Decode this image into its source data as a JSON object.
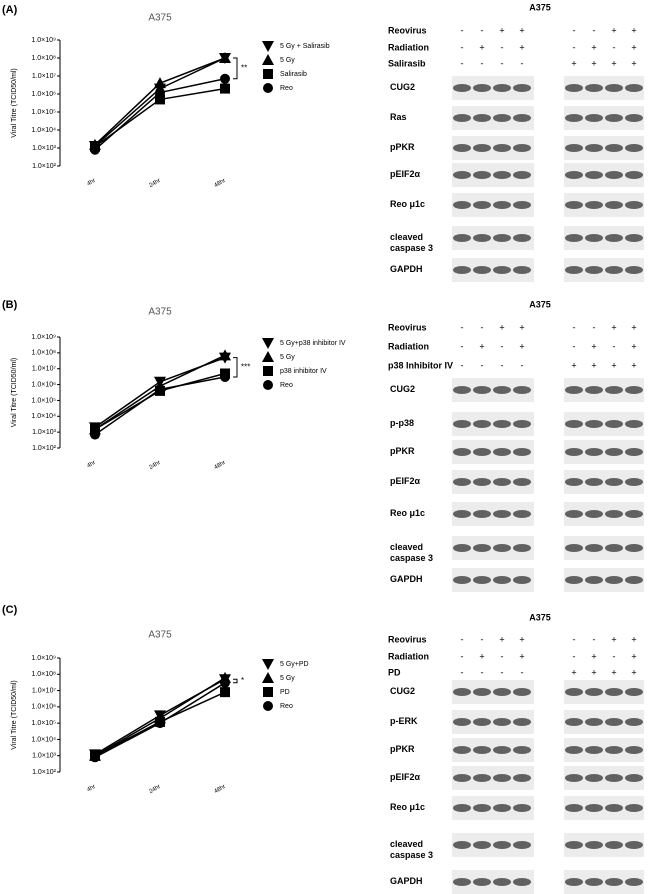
{
  "panel_labels": [
    "(A)",
    "(B)",
    "(C)"
  ],
  "chart_data": [
    {
      "type": "line",
      "title": "A375",
      "y_label": "Viral Titre (TCID50/ml)",
      "log_scale": true,
      "categories": [
        "4hr",
        "24hr",
        "48hr"
      ],
      "ylim": [
        100,
        1000000000
      ],
      "yticks": [
        {
          "value": 1000000000,
          "label": "1.0×10⁹"
        },
        {
          "value": 100000000,
          "label": "1.0×10⁸"
        },
        {
          "value": 10000000,
          "label": "1.0×10⁷"
        },
        {
          "value": 1000000,
          "label": "1.0×10⁶"
        },
        {
          "value": 100000,
          "label": "1.0×10⁵"
        },
        {
          "value": 10000,
          "label": "1.0×10⁴"
        },
        {
          "value": 1000,
          "label": "1.0×10³"
        },
        {
          "value": 100,
          "label": "1.0×10²"
        }
      ],
      "annotation": "**",
      "series": [
        {
          "name": "5 Gy + Salirasib",
          "color": "#000000",
          "marker": "triangle-down",
          "values": [
            1300,
            2000000,
            100000000
          ]
        },
        {
          "name": "5 Gy",
          "color": "#000000",
          "marker": "triangle",
          "values": [
            1500,
            4000000,
            100000000
          ]
        },
        {
          "name": "Salirasib",
          "color": "#000000",
          "marker": "square",
          "values": [
            1200,
            500000,
            2000000
          ]
        },
        {
          "name": "Reo",
          "color": "#000000",
          "marker": "circle",
          "values": [
            800,
            1200000,
            7000000
          ]
        }
      ]
    },
    {
      "type": "line",
      "title": "A375",
      "y_label": "Viral Titre (TCID50/ml)",
      "log_scale": true,
      "categories": [
        "4hr",
        "24hr",
        "48hr"
      ],
      "ylim": [
        100,
        1000000000
      ],
      "yticks": [
        {
          "value": 1000000000,
          "label": "1.0×10⁹"
        },
        {
          "value": 100000000,
          "label": "1.0×10⁸"
        },
        {
          "value": 10000000,
          "label": "1.0×10⁷"
        },
        {
          "value": 1000000,
          "label": "1.0×10⁶"
        },
        {
          "value": 100000,
          "label": "1.0×10⁵"
        },
        {
          "value": 10000,
          "label": "1.0×10⁴"
        },
        {
          "value": 1000,
          "label": "1.0×10³"
        },
        {
          "value": 100,
          "label": "1.0×10²"
        }
      ],
      "annotation": "***",
      "series": [
        {
          "name": "5 Gy+p38 inhibitor IV",
          "color": "#000000",
          "marker": "triangle-down",
          "values": [
            2000,
            1500000,
            50000000
          ]
        },
        {
          "name": "5 Gy",
          "color": "#000000",
          "marker": "triangle",
          "values": [
            1500,
            800000,
            70000000
          ]
        },
        {
          "name": "p38 inhibitor IV",
          "color": "#000000",
          "marker": "square",
          "values": [
            1500,
            400000,
            5000000
          ]
        },
        {
          "name": "Reo",
          "color": "#000000",
          "marker": "circle",
          "values": [
            700,
            500000,
            3000000
          ]
        }
      ]
    },
    {
      "type": "line",
      "title": "A375",
      "y_label": "Viral Titre (TCID50/ml)",
      "log_scale": true,
      "categories": [
        "4hr",
        "24hr",
        "48hr"
      ],
      "ylim": [
        100,
        1000000000
      ],
      "yticks": [
        {
          "value": 1000000000,
          "label": "1.0×10⁹"
        },
        {
          "value": 100000000,
          "label": "1.0×10⁸"
        },
        {
          "value": 10000000,
          "label": "1.0×10⁷"
        },
        {
          "value": 1000000,
          "label": "1.0×10⁶"
        },
        {
          "value": 100000,
          "label": "1.0×10⁵"
        },
        {
          "value": 10000,
          "label": "1.0×10⁴"
        },
        {
          "value": 1000,
          "label": "1.0×10³"
        },
        {
          "value": 100,
          "label": "1.0×10²"
        }
      ],
      "annotation": "*",
      "series": [
        {
          "name": "5 Gy+PD",
          "color": "#000000",
          "marker": "triangle-down",
          "values": [
            1200,
            300000,
            50000000
          ]
        },
        {
          "name": "5 Gy",
          "color": "#000000",
          "marker": "triangle",
          "values": [
            1000,
            200000,
            60000000
          ]
        },
        {
          "name": "PD",
          "color": "#000000",
          "marker": "square",
          "values": [
            1000,
            120000,
            8000000
          ]
        },
        {
          "name": "Reo",
          "color": "#000000",
          "marker": "circle",
          "values": [
            800,
            100000,
            30000000
          ]
        }
      ]
    }
  ],
  "blots": [
    {
      "title": "A375",
      "conditions": [
        {
          "label": "Reovirus",
          "signs": [
            "-",
            "-",
            "+",
            "+",
            "-",
            "-",
            "+",
            "+"
          ]
        },
        {
          "label": "Radiation",
          "signs": [
            "-",
            "+",
            "-",
            "+",
            "-",
            "+",
            "-",
            "+"
          ]
        },
        {
          "label": "Salirasib",
          "signs": [
            "-",
            "-",
            "-",
            "-",
            "+",
            "+",
            "+",
            "+"
          ]
        }
      ],
      "bands": [
        "CUG2",
        "Ras",
        "pPKR",
        "pEIF2α",
        "Reo μ1c",
        "cleaved caspase 3",
        "GAPDH"
      ]
    },
    {
      "title": "A375",
      "conditions": [
        {
          "label": "Reovirus",
          "signs": [
            "-",
            "-",
            "+",
            "+",
            "-",
            "-",
            "+",
            "+"
          ]
        },
        {
          "label": "Radiation",
          "signs": [
            "-",
            "+",
            "-",
            "+",
            "-",
            "+",
            "-",
            "+"
          ]
        },
        {
          "label": "p38 Inhibitor IV",
          "signs": [
            "-",
            "-",
            "-",
            "-",
            "+",
            "+",
            "+",
            "+"
          ]
        }
      ],
      "bands": [
        "CUG2",
        "p-p38",
        "pPKR",
        "pEIF2α",
        "Reo μ1c",
        "cleaved caspase 3",
        "GAPDH"
      ]
    },
    {
      "title": "A375",
      "conditions": [
        {
          "label": "Reovirus",
          "signs": [
            "-",
            "-",
            "+",
            "+",
            "-",
            "-",
            "+",
            "+"
          ]
        },
        {
          "label": "Radiation",
          "signs": [
            "-",
            "+",
            "-",
            "+",
            "-",
            "+",
            "-",
            "+"
          ]
        },
        {
          "label": "PD",
          "signs": [
            "-",
            "-",
            "-",
            "-",
            "+",
            "+",
            "+",
            "+"
          ]
        }
      ],
      "bands": [
        "CUG2",
        "p-ERK",
        "pPKR",
        "pEIF2α",
        "Reo μ1c",
        "cleaved caspase 3",
        "GAPDH"
      ]
    }
  ]
}
